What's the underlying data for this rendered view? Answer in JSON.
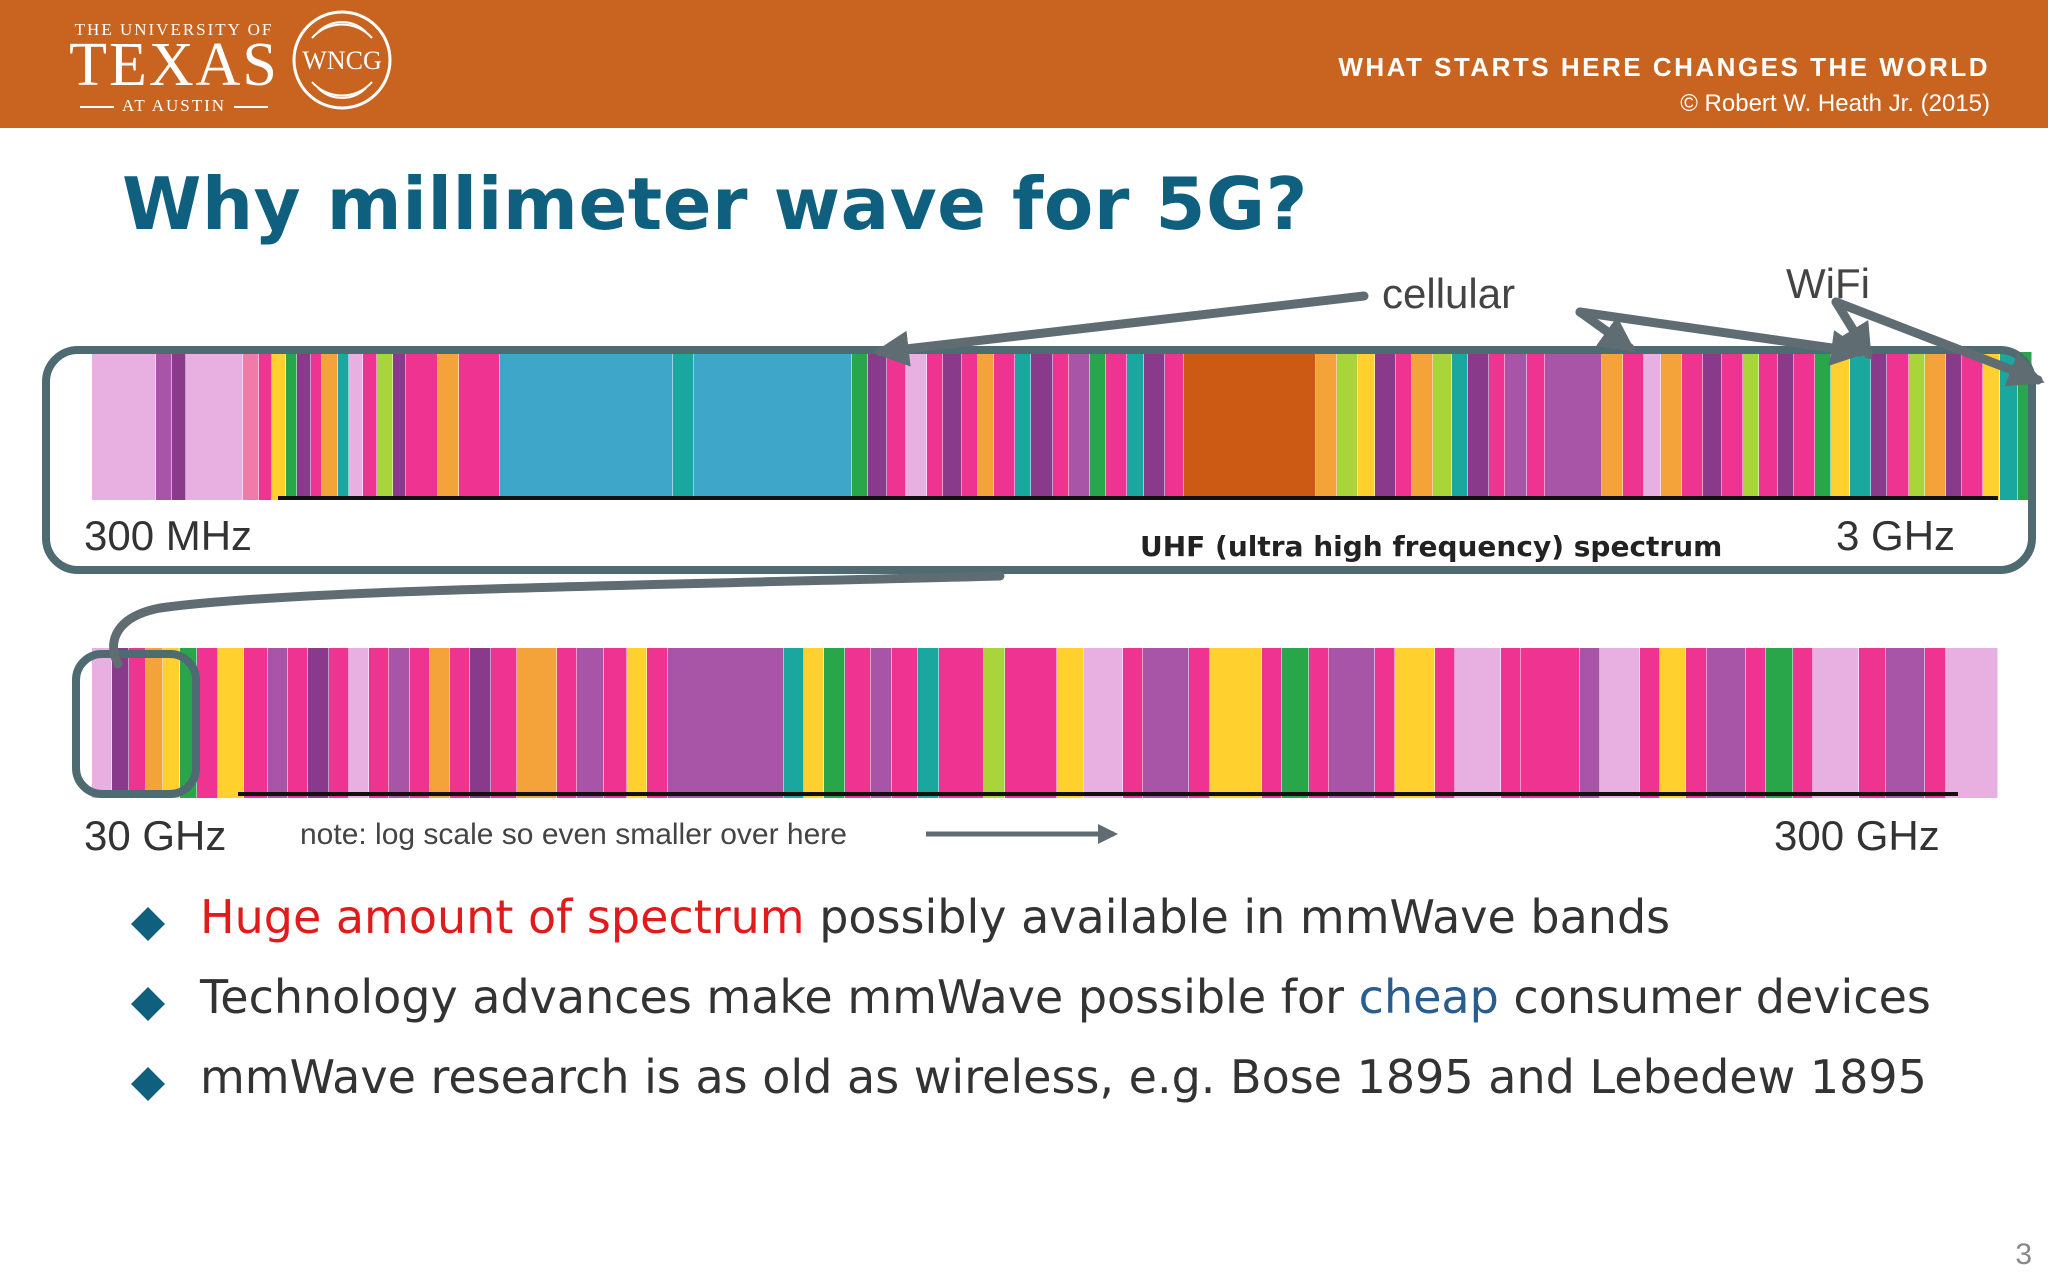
{
  "header": {
    "logo_top": "THE UNIVERSITY OF",
    "logo_main": "TEXAS",
    "logo_bottom": "AT AUSTIN",
    "wncg": "WNCG",
    "tagline": "WHAT STARTS HERE CHANGES THE WORLD",
    "copyright": "© Robert W. Heath Jr. (2015)",
    "color": "#c8641f"
  },
  "title": "Why millimeter wave for 5G?",
  "callouts": {
    "cellular": "cellular",
    "wifi": "WiFi"
  },
  "spectrum_top": {
    "start": "300 MHz",
    "end": "3 GHz",
    "label": "UHF (ultra high frequency) spectrum",
    "bands": [
      {
        "w": 2.5,
        "c": "#e8b0e0"
      },
      {
        "w": 0.6,
        "c": "#a855a8"
      },
      {
        "w": 0.5,
        "c": "#8a3a8a"
      },
      {
        "w": 2.2,
        "c": "#e8b0e0"
      },
      {
        "w": 0.6,
        "c": "#f07aa8"
      },
      {
        "w": 0.5,
        "c": "#ee3390"
      },
      {
        "w": 0.5,
        "c": "#ffd02e"
      },
      {
        "w": 0.4,
        "c": "#29a64a"
      },
      {
        "w": 0.5,
        "c": "#8a3a8a"
      },
      {
        "w": 0.4,
        "c": "#ee3390"
      },
      {
        "w": 0.6,
        "c": "#f4a23a"
      },
      {
        "w": 0.4,
        "c": "#1aa7a0"
      },
      {
        "w": 0.5,
        "c": "#e8b0e0"
      },
      {
        "w": 0.5,
        "c": "#ee3390"
      },
      {
        "w": 0.6,
        "c": "#a9d43a"
      },
      {
        "w": 0.5,
        "c": "#8a3a8a"
      },
      {
        "w": 1.2,
        "c": "#ee3390"
      },
      {
        "w": 0.8,
        "c": "#f4a23a"
      },
      {
        "w": 1.6,
        "c": "#ee3390"
      },
      {
        "w": 6.8,
        "c": "#3ea6c8"
      },
      {
        "w": 0.8,
        "c": "#1aa7a0"
      },
      {
        "w": 6.2,
        "c": "#3ea6c8"
      },
      {
        "w": 0.6,
        "c": "#29a64a"
      },
      {
        "w": 0.7,
        "c": "#8a3a8a"
      },
      {
        "w": 0.7,
        "c": "#ee3390"
      },
      {
        "w": 0.8,
        "c": "#e8b0e0"
      },
      {
        "w": 0.6,
        "c": "#ee3390"
      },
      {
        "w": 0.7,
        "c": "#8a3a8a"
      },
      {
        "w": 0.6,
        "c": "#ee3390"
      },
      {
        "w": 0.6,
        "c": "#f4a23a"
      },
      {
        "w": 0.8,
        "c": "#ee3390"
      },
      {
        "w": 0.6,
        "c": "#1aa7a0"
      },
      {
        "w": 0.8,
        "c": "#8a3a8a"
      },
      {
        "w": 0.6,
        "c": "#ee3390"
      },
      {
        "w": 0.8,
        "c": "#a855a8"
      },
      {
        "w": 0.6,
        "c": "#29a64a"
      },
      {
        "w": 0.8,
        "c": "#ee3390"
      },
      {
        "w": 0.6,
        "c": "#1aa7a0"
      },
      {
        "w": 0.8,
        "c": "#8a3a8a"
      },
      {
        "w": 0.7,
        "c": "#ee3390"
      },
      {
        "w": 5.2,
        "c": "#cc5a14"
      },
      {
        "w": 0.8,
        "c": "#f4a23a"
      },
      {
        "w": 0.8,
        "c": "#a9d43a"
      },
      {
        "w": 0.6,
        "c": "#ffd02e"
      },
      {
        "w": 0.8,
        "c": "#8a3a8a"
      },
      {
        "w": 0.6,
        "c": "#ee3390"
      },
      {
        "w": 0.8,
        "c": "#f4a23a"
      },
      {
        "w": 0.7,
        "c": "#a9d43a"
      },
      {
        "w": 0.6,
        "c": "#1aa7a0"
      },
      {
        "w": 0.8,
        "c": "#8a3a8a"
      },
      {
        "w": 0.6,
        "c": "#ee3390"
      },
      {
        "w": 0.8,
        "c": "#a855a8"
      },
      {
        "w": 0.7,
        "c": "#ee3390"
      },
      {
        "w": 2.2,
        "c": "#a855a8"
      },
      {
        "w": 0.8,
        "c": "#f4a23a"
      },
      {
        "w": 0.8,
        "c": "#ee3390"
      },
      {
        "w": 0.6,
        "c": "#e8b0e0"
      },
      {
        "w": 0.8,
        "c": "#f4a23a"
      },
      {
        "w": 0.8,
        "c": "#ee3390"
      },
      {
        "w": 0.7,
        "c": "#8a3a8a"
      },
      {
        "w": 0.8,
        "c": "#ee3390"
      },
      {
        "w": 0.6,
        "c": "#a9d43a"
      },
      {
        "w": 0.7,
        "c": "#ee3390"
      },
      {
        "w": 0.6,
        "c": "#8a3a8a"
      },
      {
        "w": 0.8,
        "c": "#ee3390"
      },
      {
        "w": 0.6,
        "c": "#29a64a"
      },
      {
        "w": 0.7,
        "c": "#ffd02e"
      },
      {
        "w": 0.8,
        "c": "#1aa7a0"
      },
      {
        "w": 0.6,
        "c": "#8a3a8a"
      },
      {
        "w": 0.8,
        "c": "#ee3390"
      },
      {
        "w": 0.6,
        "c": "#a9d43a"
      },
      {
        "w": 0.8,
        "c": "#f4a23a"
      },
      {
        "w": 0.6,
        "c": "#8a3a8a"
      },
      {
        "w": 0.8,
        "c": "#ee3390"
      },
      {
        "w": 0.6,
        "c": "#ffd02e"
      },
      {
        "w": 0.7,
        "c": "#1aa7a0"
      },
      {
        "w": 0.5,
        "c": "#29a64a"
      }
    ]
  },
  "spectrum_bottom": {
    "start": "30 GHz",
    "end": "300 GHz",
    "note": "note: log scale so even smaller over here",
    "bands": [
      {
        "w": 0.6,
        "c": "#e8b0e0"
      },
      {
        "w": 0.5,
        "c": "#8a3a8a"
      },
      {
        "w": 0.5,
        "c": "#ee3390"
      },
      {
        "w": 0.5,
        "c": "#f4a23a"
      },
      {
        "w": 0.5,
        "c": "#ffd02e"
      },
      {
        "w": 0.5,
        "c": "#29a64a"
      },
      {
        "w": 0.6,
        "c": "#ee3390"
      },
      {
        "w": 0.8,
        "c": "#ffd02e"
      },
      {
        "w": 0.7,
        "c": "#ee3390"
      },
      {
        "w": 0.6,
        "c": "#a855a8"
      },
      {
        "w": 0.6,
        "c": "#ee3390"
      },
      {
        "w": 0.6,
        "c": "#8a3a8a"
      },
      {
        "w": 0.6,
        "c": "#ee3390"
      },
      {
        "w": 0.6,
        "c": "#e8b0e0"
      },
      {
        "w": 0.6,
        "c": "#ee3390"
      },
      {
        "w": 0.6,
        "c": "#a855a8"
      },
      {
        "w": 0.6,
        "c": "#ee3390"
      },
      {
        "w": 0.6,
        "c": "#f4a23a"
      },
      {
        "w": 0.6,
        "c": "#ee3390"
      },
      {
        "w": 0.6,
        "c": "#8a3a8a"
      },
      {
        "w": 0.8,
        "c": "#ee3390"
      },
      {
        "w": 1.2,
        "c": "#f4a23a"
      },
      {
        "w": 0.6,
        "c": "#ee3390"
      },
      {
        "w": 0.8,
        "c": "#a855a8"
      },
      {
        "w": 0.7,
        "c": "#ee3390"
      },
      {
        "w": 0.6,
        "c": "#ffd02e"
      },
      {
        "w": 0.6,
        "c": "#ee3390"
      },
      {
        "w": 3.6,
        "c": "#a855a8"
      },
      {
        "w": 0.6,
        "c": "#1aa7a0"
      },
      {
        "w": 0.6,
        "c": "#ffd02e"
      },
      {
        "w": 0.6,
        "c": "#29a64a"
      },
      {
        "w": 0.8,
        "c": "#ee3390"
      },
      {
        "w": 0.6,
        "c": "#a855a8"
      },
      {
        "w": 0.8,
        "c": "#ee3390"
      },
      {
        "w": 0.6,
        "c": "#1aa7a0"
      },
      {
        "w": 1.4,
        "c": "#ee3390"
      },
      {
        "w": 0.6,
        "c": "#a9d43a"
      },
      {
        "w": 1.6,
        "c": "#ee3390"
      },
      {
        "w": 0.8,
        "c": "#ffd02e"
      },
      {
        "w": 1.2,
        "c": "#e8b0e0"
      },
      {
        "w": 0.6,
        "c": "#ee3390"
      },
      {
        "w": 1.4,
        "c": "#a855a8"
      },
      {
        "w": 0.6,
        "c": "#ee3390"
      },
      {
        "w": 1.6,
        "c": "#ffd02e"
      },
      {
        "w": 0.6,
        "c": "#ee3390"
      },
      {
        "w": 0.8,
        "c": "#29a64a"
      },
      {
        "w": 0.6,
        "c": "#ee3390"
      },
      {
        "w": 1.4,
        "c": "#a855a8"
      },
      {
        "w": 0.6,
        "c": "#ee3390"
      },
      {
        "w": 1.2,
        "c": "#ffd02e"
      },
      {
        "w": 0.6,
        "c": "#ee3390"
      },
      {
        "w": 1.4,
        "c": "#e8b0e0"
      },
      {
        "w": 0.6,
        "c": "#ee3390"
      },
      {
        "w": 1.8,
        "c": "#ee3390"
      },
      {
        "w": 0.6,
        "c": "#a855a8"
      },
      {
        "w": 1.2,
        "c": "#e8b0e0"
      },
      {
        "w": 0.6,
        "c": "#ee3390"
      },
      {
        "w": 0.8,
        "c": "#ffd02e"
      },
      {
        "w": 0.6,
        "c": "#ee3390"
      },
      {
        "w": 1.2,
        "c": "#a855a8"
      },
      {
        "w": 0.6,
        "c": "#ee3390"
      },
      {
        "w": 0.8,
        "c": "#29a64a"
      },
      {
        "w": 0.6,
        "c": "#ee3390"
      },
      {
        "w": 1.4,
        "c": "#e8b0e0"
      },
      {
        "w": 0.8,
        "c": "#ee3390"
      },
      {
        "w": 1.2,
        "c": "#a855a8"
      },
      {
        "w": 0.6,
        "c": "#ee3390"
      },
      {
        "w": 1.6,
        "c": "#e8b0e0"
      }
    ]
  },
  "bullets": [
    {
      "highlight": "Huge amount of spectrum",
      "rest": " possibly available in mmWave bands"
    },
    {
      "before": "Technology advances make mmWave possible for ",
      "highlight": "cheap",
      "after": " consumer devices"
    },
    {
      "text": "mmWave research is as old as wireless, e.g. Bose 1895 and Lebedew 1895"
    }
  ],
  "page_number": "3",
  "colors": {
    "title": "#0f5f7f",
    "outline": "#4e6b72",
    "red": "#e11b1b",
    "blue": "#2a5d8f"
  }
}
